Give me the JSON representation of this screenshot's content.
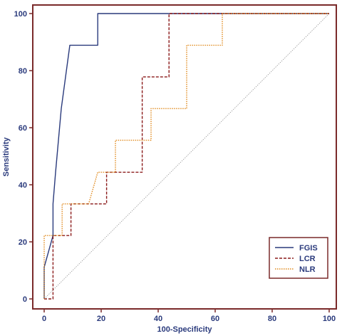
{
  "chart_data": {
    "type": "line",
    "title": "",
    "xlabel": "100-Specificity",
    "ylabel": "Sensitivity",
    "xlim": [
      0,
      100
    ],
    "ylim": [
      0,
      100
    ],
    "xticks": [
      "0",
      "20",
      "40",
      "60",
      "80",
      "100"
    ],
    "yticks": [
      "0",
      "20",
      "40",
      "60",
      "80",
      "100"
    ],
    "legend_position": "bottom-right",
    "grid": false,
    "colors": {
      "frame": "#7a2a2a",
      "axis_text": "#2a3a7c",
      "diagonal": "#9a9a9a"
    },
    "series": [
      {
        "name": "FGIS",
        "color": "#2a3a7c",
        "style": "solid",
        "x": [
          0,
          0,
          3.1,
          3.1,
          4.0,
          6.0,
          9.0,
          18.8,
          18.8,
          100
        ],
        "y": [
          0,
          11.1,
          22.2,
          33.3,
          44.4,
          66.7,
          88.9,
          88.9,
          100,
          100
        ]
      },
      {
        "name": "LCR",
        "color": "#8b1a1a",
        "style": "dashed",
        "x": [
          0,
          3.1,
          3.1,
          9.4,
          9.4,
          21.9,
          21.9,
          34.4,
          34.4,
          43.8,
          43.8,
          100
        ],
        "y": [
          0,
          0,
          22.2,
          22.2,
          33.3,
          33.3,
          44.4,
          44.4,
          77.8,
          77.8,
          100,
          100
        ]
      },
      {
        "name": "NLR",
        "color": "#e08a1e",
        "style": "dotted",
        "x": [
          0,
          0,
          3.1,
          3.1,
          6.3,
          6.3,
          15.6,
          18.8,
          25.0,
          25.0,
          37.5,
          37.5,
          50.0,
          50.0,
          62.5,
          62.5,
          100
        ],
        "y": [
          0,
          22.2,
          22.2,
          22.2,
          22.2,
          33.3,
          33.3,
          44.4,
          44.4,
          55.6,
          55.6,
          66.7,
          66.7,
          88.9,
          88.9,
          100,
          100
        ]
      }
    ]
  }
}
